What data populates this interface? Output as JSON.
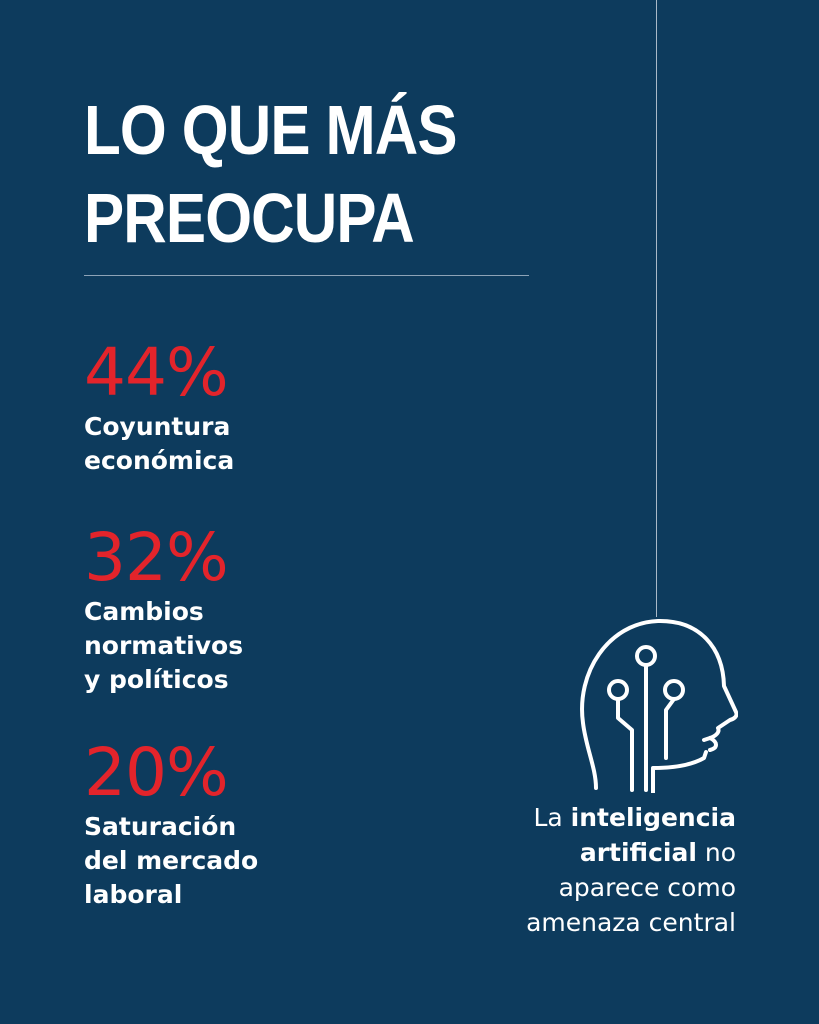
{
  "title": {
    "line1": "LO QUE MÁS",
    "line2": "PREOCUPA"
  },
  "stats": [
    {
      "percent": "44%",
      "label": "Coyuntura\neconómica"
    },
    {
      "percent": "32%",
      "label": "Cambios\nnormativos\ny políticos"
    },
    {
      "percent": "20%",
      "label": "Saturación\ndel mercado\nlaboral"
    }
  ],
  "ai_note": {
    "prefix": "La ",
    "bold1": "inteligencia",
    "bold2": "artificial",
    "mid": " no",
    "line3": "aparece como",
    "line4": "amenaza central"
  },
  "icons": {
    "ai_head": "ai-head-circuit-icon"
  },
  "colors": {
    "background": "#0d3b5d",
    "accent": "#e3242b",
    "text": "#ffffff"
  }
}
